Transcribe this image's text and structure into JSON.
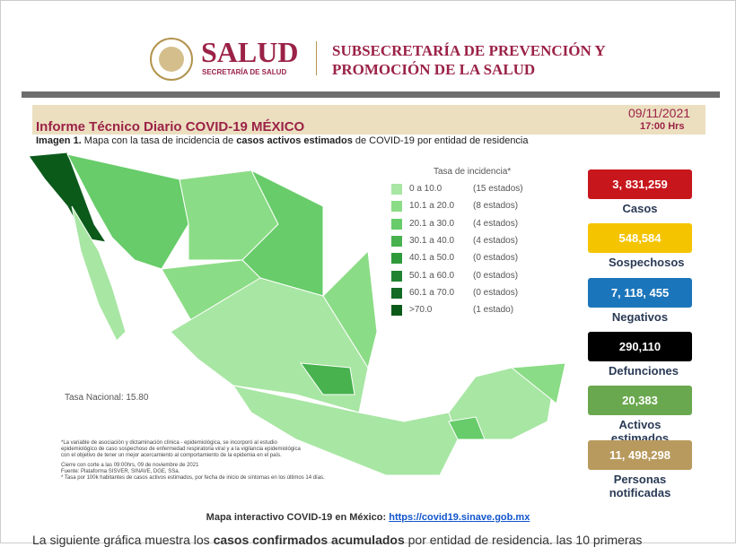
{
  "header": {
    "agency": "SALUD",
    "agency_sub": "SECRETARÍA DE SALUD",
    "subsecretaria": [
      "SUBSECRETARÍA DE PREVENCIÓN Y",
      "PROMOCIÓN DE LA SALUD"
    ]
  },
  "report": {
    "title": "Informe Técnico Diario COVID-19 MÉXICO",
    "date": "09/11/2021",
    "time": "17:00 Hrs"
  },
  "caption": {
    "label": "Imagen 1.",
    "text_before": " Mapa con la tasa de incidencia de ",
    "emphasis": "casos activos estimados",
    "text_after": " de COVID-19 por entidad de residencia"
  },
  "legend": {
    "title": "Tasa de incidencia*",
    "items": [
      {
        "range": "0  a  10.0",
        "count": "(15 estados)",
        "color": "#a8e6a3"
      },
      {
        "range": "10.1 a  20.0",
        "count": "(8 estados)",
        "color": "#8bdc86"
      },
      {
        "range": "20.1 a  30.0",
        "count": "(4 estados)",
        "color": "#67cc69"
      },
      {
        "range": "30.1 a  40.0",
        "count": "(4 estados)",
        "color": "#47b24e"
      },
      {
        "range": "40.1 a  50.0",
        "count": "(0 estados)",
        "color": "#2e9a3a"
      },
      {
        "range": "50.1 a  60.0",
        "count": "(0 estados)",
        "color": "#1f8330"
      },
      {
        "range": "60.1 a  70.0",
        "count": "(0 estados)",
        "color": "#146b24"
      },
      {
        "range": ">70.0",
        "count": "(1 estado)",
        "color": "#0b5a1a"
      }
    ]
  },
  "national_rate": "Tasa Nacional: 15.80",
  "notes": [
    "*La variable de asociación y dictaminación clínica - epidemiológica, se incorporó al estudio",
    "epidemiológico de caso sospechoso de enfermedad respiratoria viral y a la vigilancia epidemiológica",
    "con el objetivo de tener un mejor acercamiento al comportamiento de la epidemia en el país.",
    "Cierre con corte a las 09:00hrs, 09 de noviembre de 2021",
    "Fuente: Plataforma SISVER, SINAVE, DGE, SSa.",
    "* Tasa por 100k habitantes de casos activos estimados, por fecha de inicio de síntomas en los últimos 14 días."
  ],
  "stats": [
    {
      "value": "3, 831,259",
      "label": "Casos",
      "color": "#c8161d",
      "text_color": "#ffffff"
    },
    {
      "value": "548,584",
      "label": "Sospechosos",
      "color": "#f5c400",
      "text_color": "#ffffff"
    },
    {
      "value": "7, 118, 455",
      "label": "Negativos",
      "color": "#1b75bb",
      "text_color": "#ffffff"
    },
    {
      "value": "290,110",
      "label": "Defunciones",
      "color": "#000000",
      "text_color": "#ffffff"
    },
    {
      "value": "20,383",
      "label": "Activos estimados",
      "color": "#6aa84f",
      "text_color": "#ffffff"
    },
    {
      "value": "11, 498,298",
      "label": "Personas notificadas",
      "color": "#b89a5e",
      "text_color": "#ffffff"
    }
  ],
  "link": {
    "label": "Mapa interactivo COVID-19 en México: ",
    "url": "https://covid19.sinave.gob.mx"
  },
  "body_text": {
    "before": "La siguiente gráfica muestra los ",
    "emphasis": "casos confirmados acumulados",
    "after": " por entidad de residencia. las 10 primeras"
  }
}
